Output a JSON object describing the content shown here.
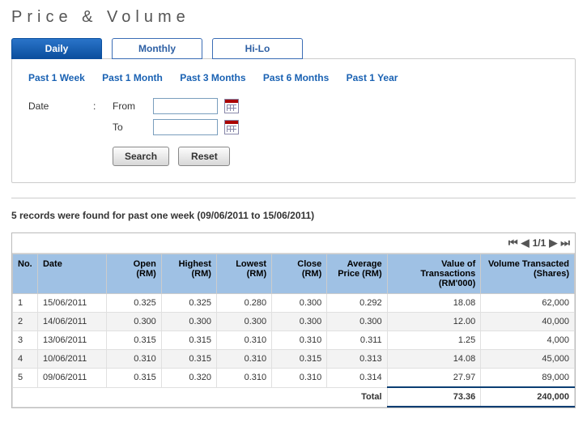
{
  "title": "Price & Volume",
  "tabs": {
    "daily": "Daily",
    "monthly": "Monthly",
    "hilo": "Hi-Lo"
  },
  "periods": {
    "w1": "Past 1 Week",
    "m1": "Past 1 Month",
    "m3": "Past 3 Months",
    "m6": "Past 6 Months",
    "y1": "Past 1 Year"
  },
  "dateFilter": {
    "label": "Date",
    "colon": ":",
    "from": "From",
    "to": "To"
  },
  "buttons": {
    "search": "Search",
    "reset": "Reset"
  },
  "resultMsg": "5 records were found for past one week (09/06/2011 to 15/06/2011)",
  "pager": {
    "page": "1/1"
  },
  "headers": {
    "no": "No.",
    "date": "Date",
    "open": "Open (RM)",
    "high": "Highest (RM)",
    "low": "Lowest (RM)",
    "close": "Close (RM)",
    "avg": "Average Price (RM)",
    "val": "Value of Transactions (RM'000)",
    "vol": "Volume Transacted (Shares)"
  },
  "rows": [
    {
      "no": "1",
      "date": "15/06/2011",
      "open": "0.325",
      "high": "0.325",
      "low": "0.280",
      "close": "0.300",
      "avg": "0.292",
      "val": "18.08",
      "vol": "62,000"
    },
    {
      "no": "2",
      "date": "14/06/2011",
      "open": "0.300",
      "high": "0.300",
      "low": "0.300",
      "close": "0.300",
      "avg": "0.300",
      "val": "12.00",
      "vol": "40,000"
    },
    {
      "no": "3",
      "date": "13/06/2011",
      "open": "0.315",
      "high": "0.315",
      "low": "0.310",
      "close": "0.310",
      "avg": "0.311",
      "val": "1.25",
      "vol": "4,000"
    },
    {
      "no": "4",
      "date": "10/06/2011",
      "open": "0.310",
      "high": "0.315",
      "low": "0.310",
      "close": "0.315",
      "avg": "0.313",
      "val": "14.08",
      "vol": "45,000"
    },
    {
      "no": "5",
      "date": "09/06/2011",
      "open": "0.315",
      "high": "0.320",
      "low": "0.310",
      "close": "0.310",
      "avg": "0.314",
      "val": "27.97",
      "vol": "89,000"
    }
  ],
  "total": {
    "label": "Total",
    "val": "73.36",
    "vol": "240,000"
  },
  "colWidths": {
    "no": 30,
    "date": 82,
    "open": 66,
    "high": 66,
    "low": 66,
    "close": 66,
    "avg": 72,
    "val": 112,
    "vol": 112
  }
}
